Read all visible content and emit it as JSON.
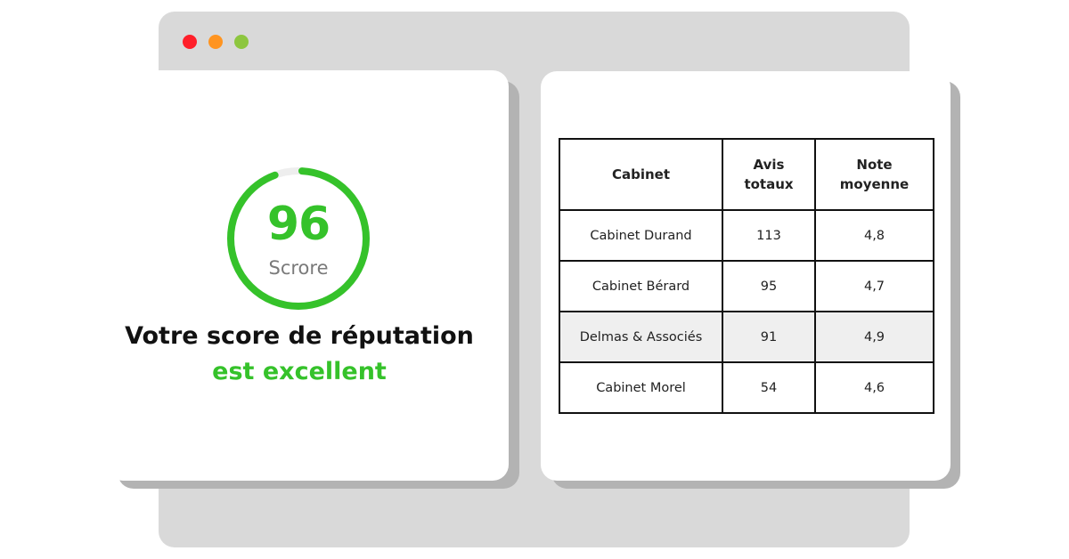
{
  "window": {
    "controls": [
      {
        "name": "close",
        "color": "#ff1f2a"
      },
      {
        "name": "minimize",
        "color": "#ff9420"
      },
      {
        "name": "maximize",
        "color": "#8dc63f"
      }
    ]
  },
  "score": {
    "value": "96",
    "percent": 96,
    "label": "Scrore",
    "color": "#35c22a",
    "track_color": "#eeeeee"
  },
  "headline": {
    "line1": "Votre score de réputation",
    "line2": "est excellent"
  },
  "table": {
    "headers": [
      "Cabinet",
      "Avis totaux",
      "Note moyenne"
    ],
    "rows": [
      {
        "name": "Cabinet Durand",
        "reviews": "113",
        "rating": "4,8"
      },
      {
        "name": "Cabinet Bérard",
        "reviews": "95",
        "rating": "4,7"
      },
      {
        "name": "Delmas & Associés",
        "reviews": "91",
        "rating": "4,9"
      },
      {
        "name": "Cabinet Morel",
        "reviews": "54",
        "rating": "4,6"
      }
    ]
  }
}
